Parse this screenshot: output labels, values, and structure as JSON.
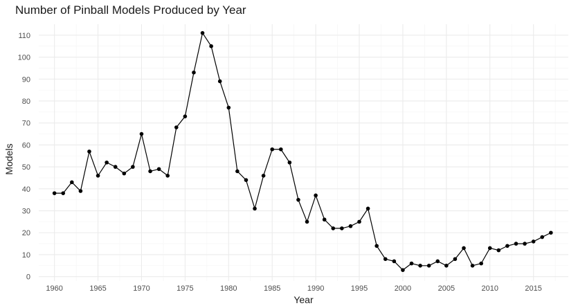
{
  "chart_data": {
    "type": "line",
    "title": "Number of Pinball Models Produced by Year",
    "xlabel": "Year",
    "ylabel": "Models",
    "xlim": [
      1958.2,
      2019.0
    ],
    "ylim": [
      -2,
      115
    ],
    "x_ticks": [
      1960,
      1965,
      1970,
      1975,
      1980,
      1985,
      1990,
      1995,
      2000,
      2005,
      2010,
      2015
    ],
    "y_ticks": [
      0,
      10,
      20,
      30,
      40,
      50,
      60,
      70,
      80,
      90,
      100,
      110
    ],
    "x_tick_labels": [
      "1960",
      "1965",
      "1970",
      "1975",
      "1980",
      "1985",
      "1990",
      "1995",
      "2000",
      "2005",
      "2010",
      "2015"
    ],
    "y_tick_labels": [
      "0",
      "10",
      "20",
      "30",
      "40",
      "50",
      "60",
      "70",
      "80",
      "90",
      "100",
      "110"
    ],
    "grid": true,
    "legend": "none",
    "series": [
      {
        "color": "#000000",
        "x": [
          1960,
          1961,
          1962,
          1963,
          1964,
          1965,
          1966,
          1967,
          1968,
          1969,
          1970,
          1971,
          1972,
          1973,
          1974,
          1975,
          1976,
          1977,
          1978,
          1979,
          1980,
          1981,
          1982,
          1983,
          1984,
          1985,
          1986,
          1987,
          1988,
          1989,
          1990,
          1991,
          1992,
          1993,
          1994,
          1995,
          1996,
          1997,
          1998,
          1999,
          2000,
          2001,
          2002,
          2003,
          2004,
          2005,
          2006,
          2007,
          2008,
          2009,
          2010,
          2011,
          2012,
          2013,
          2014,
          2015,
          2016,
          2017
        ],
        "y": [
          38,
          38,
          43,
          39,
          57,
          46,
          52,
          50,
          47,
          50,
          65,
          48,
          49,
          46,
          68,
          73,
          93,
          111,
          105,
          89,
          77,
          48,
          44,
          31,
          46,
          58,
          58,
          52,
          35,
          25,
          37,
          26,
          22,
          22,
          23,
          25,
          31,
          14,
          8,
          7,
          3,
          6,
          5,
          5,
          7,
          5,
          8,
          13,
          5,
          6,
          13,
          12,
          14,
          15,
          15,
          16,
          18,
          20
        ]
      }
    ]
  }
}
